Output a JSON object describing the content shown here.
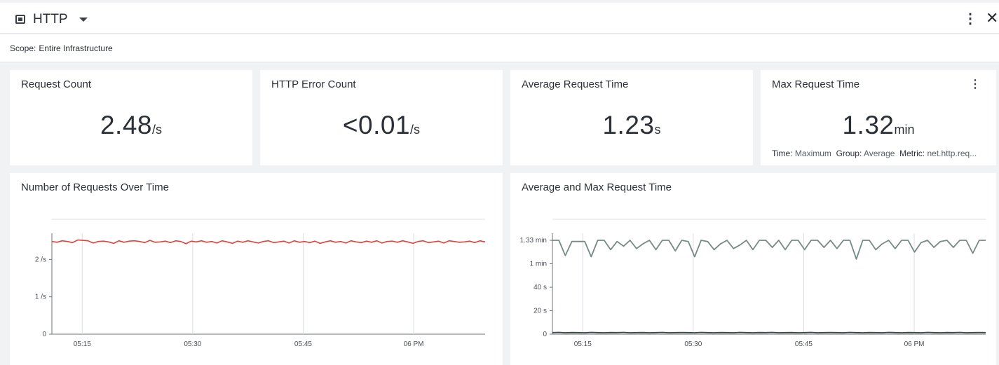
{
  "header": {
    "title": "HTTP",
    "icon": "dashboard-icon"
  },
  "scope": {
    "label": "Scope:",
    "value": "Entire Infrastructure"
  },
  "metrics": [
    {
      "title": "Request Count",
      "value": "2.48",
      "unit": "/s"
    },
    {
      "title": "HTTP Error Count",
      "value": "<0.01",
      "unit": "/s"
    },
    {
      "title": "Average Request Time",
      "value": "1.23",
      "unit": "s"
    },
    {
      "title": "Max Request Time",
      "value": "1.32",
      "unit": "min",
      "meta": {
        "time_label": "Time:",
        "time_value": "Maximum",
        "group_label": "Group:",
        "group_value": "Average",
        "metric_label": "Metric:",
        "metric_value": "net.http.req..."
      }
    }
  ],
  "colors": {
    "requests_line": "#e0413a",
    "max_line": "#758a86",
    "avg_line": "#3b4a47",
    "grid": "#dadde1"
  },
  "chart_data": [
    {
      "type": "line",
      "title": "Number of Requests Over Time",
      "xticks": [
        "05:15",
        "05:30",
        "05:45",
        "06 PM"
      ],
      "yticks": [
        "0",
        "1 /s",
        "2 /s"
      ],
      "ylim": [
        0,
        2.7
      ],
      "grid": true,
      "series": [
        {
          "values": [
            2.48,
            2.46,
            2.5,
            2.48,
            2.45,
            2.52,
            2.51,
            2.5,
            2.44,
            2.48,
            2.49,
            2.47,
            2.43,
            2.5,
            2.46,
            2.49,
            2.5,
            2.48,
            2.45,
            2.51,
            2.46,
            2.47,
            2.49,
            2.45,
            2.5,
            2.48,
            2.42,
            2.49,
            2.47,
            2.5,
            2.46,
            2.48,
            2.44,
            2.5,
            2.47,
            2.43,
            2.49,
            2.46,
            2.5,
            2.47,
            2.44,
            2.48,
            2.5,
            2.45,
            2.47,
            2.49,
            2.44,
            2.5,
            2.46,
            2.48,
            2.45,
            2.49,
            2.43,
            2.47,
            2.5,
            2.46,
            2.48,
            2.44,
            2.5,
            2.47,
            2.45,
            2.49,
            2.46,
            2.5,
            2.44,
            2.48,
            2.49,
            2.46,
            2.5,
            2.47,
            2.43,
            2.48,
            2.5,
            2.45,
            2.47,
            2.49,
            2.44,
            2.5,
            2.48,
            2.46,
            2.47,
            2.49,
            2.45,
            2.5,
            2.47
          ]
        }
      ]
    },
    {
      "type": "line",
      "title": "Average and Max Request Time",
      "xticks": [
        "05:15",
        "05:30",
        "05:45",
        "06 PM"
      ],
      "yticks": [
        "0",
        "20 s",
        "40 s",
        "1 min",
        "1.33 min"
      ],
      "ytick_values": [
        0,
        20,
        40,
        60,
        80
      ],
      "ylim": [
        0,
        86
      ],
      "grid": true,
      "series": [
        {
          "values": [
            80,
            80,
            67,
            79,
            79,
            79,
            66,
            80,
            80,
            72,
            79,
            75,
            80,
            73,
            77,
            80,
            72,
            80,
            80,
            71,
            80,
            79,
            66,
            80,
            79,
            72,
            77,
            80,
            73,
            76,
            80,
            72,
            80,
            80,
            74,
            80,
            72,
            80,
            80,
            72,
            80,
            80,
            74,
            80,
            73,
            80,
            80,
            64,
            80,
            80,
            72,
            77,
            80,
            73,
            80,
            80,
            70,
            78,
            80,
            74,
            79,
            80,
            74,
            80,
            80,
            69,
            80,
            80
          ]
        },
        {
          "values": [
            1.3,
            1.5,
            1.2,
            1.4,
            1.3,
            1.2,
            1.5,
            1.3,
            1.2,
            1.4,
            1.3,
            1.5,
            1.2,
            1.3,
            1.4,
            1.2,
            1.3,
            1.5,
            1.2,
            1.3,
            1.4,
            1.3,
            1.2,
            1.5,
            1.3,
            1.2,
            1.4,
            1.3,
            1.2,
            1.5,
            1.3,
            1.2,
            1.4,
            1.3,
            1.5,
            1.2,
            1.3,
            1.4,
            1.2,
            1.3,
            1.5,
            1.2,
            1.3,
            1.4,
            1.3,
            1.2,
            1.5,
            1.3,
            1.2,
            1.4,
            1.3,
            1.2,
            1.5,
            1.3,
            1.2,
            1.4,
            1.3,
            1.2,
            1.5,
            1.3,
            1.2,
            1.4,
            1.3,
            1.5,
            1.2,
            1.3,
            1.4,
            1.3
          ]
        }
      ]
    }
  ]
}
